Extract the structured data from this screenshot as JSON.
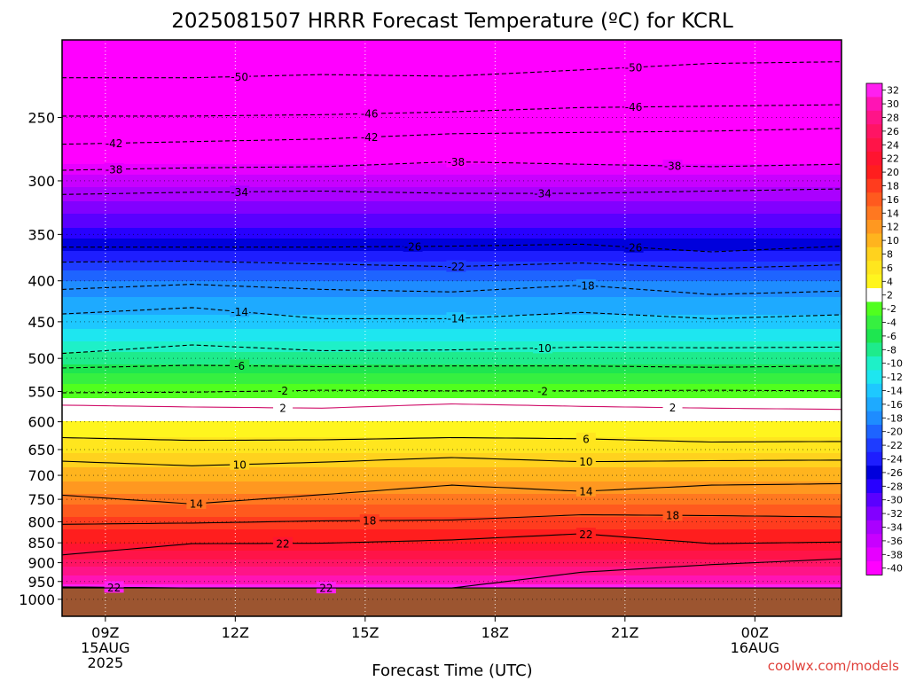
{
  "chart_data": {
    "type": "heatmap",
    "title": "2025081507 HRRR Forecast Temperature (ºC) for KCRL",
    "xlabel": "Forecast Time (UTC)",
    "ylabel": "",
    "x_ticks": [
      {
        "label": [
          "09Z",
          "15AUG",
          "2025"
        ],
        "hour": 9
      },
      {
        "label": [
          "12Z"
        ],
        "hour": 12
      },
      {
        "label": [
          "15Z"
        ],
        "hour": 15
      },
      {
        "label": [
          "18Z"
        ],
        "hour": 18
      },
      {
        "label": [
          "21Z"
        ],
        "hour": 21
      },
      {
        "label": [
          "00Z",
          "16AUG"
        ],
        "hour": 24
      }
    ],
    "xlim_hours": [
      8,
      26
    ],
    "y_axis": "pressure (hPa), log scale, inverted",
    "y_ticks": [
      250,
      300,
      350,
      400,
      450,
      500,
      550,
      600,
      650,
      700,
      750,
      800,
      850,
      900,
      950,
      1000
    ],
    "ylim": [
      200,
      1050
    ],
    "surface_pressure": 968,
    "colorbar": {
      "labels": [
        "32",
        "30",
        "28",
        "26",
        "24",
        "22",
        "20",
        "18",
        "16",
        "14",
        "12",
        "10",
        "8",
        "6",
        "4",
        "2",
        "-2",
        "-4",
        "-6",
        "-8",
        "-10",
        "-12",
        "-14",
        "-16",
        "-18",
        "-20",
        "-22",
        "-24",
        "-26",
        "-28",
        "-30",
        "-32",
        "-34",
        "-36",
        "-38",
        "-40"
      ],
      "colors": [
        "#ff20f0",
        "#ff14b4",
        "#ff1488",
        "#ff1464",
        "#ff1448",
        "#ff1430",
        "#ff1e1e",
        "#ff3c1e",
        "#ff5a1e",
        "#ff7820",
        "#ff9820",
        "#ffb41e",
        "#ffd21e",
        "#ffe61e",
        "#fff51e",
        "#ffffff",
        "#50ff1e",
        "#36f040",
        "#1ee650",
        "#1eeb8c",
        "#1ef0c8",
        "#1ee6f0",
        "#1ec8ff",
        "#1eaaff",
        "#1e8cff",
        "#1e64ff",
        "#1e3cff",
        "#1e1eff",
        "#0000dc",
        "#2800ff",
        "#5a00ff",
        "#8200ff",
        "#aa00ff",
        "#c800ff",
        "#e600ff",
        "#ff00ff"
      ]
    },
    "layers": [
      {
        "p": 200,
        "t": -58
      },
      {
        "p": 250,
        "t": -47
      },
      {
        "p": 300,
        "t": -36
      },
      {
        "p": 355,
        "t": -27
      },
      {
        "p": 400,
        "t": -19
      },
      {
        "p": 450,
        "t": -14
      },
      {
        "p": 500,
        "t": -8
      },
      {
        "p": 560,
        "t": 0
      },
      {
        "p": 600,
        "t": 3
      },
      {
        "p": 700,
        "t": 10
      },
      {
        "p": 750,
        "t": 14
      },
      {
        "p": 800,
        "t": 18
      },
      {
        "p": 850,
        "t": 21
      },
      {
        "p": 900,
        "t": 26
      },
      {
        "p": 968,
        "t": 32
      }
    ],
    "contours": [
      {
        "level": -50,
        "dashed": true,
        "p": [
          223,
          223,
          221,
          222,
          218,
          214,
          213
        ],
        "labels": [
          {
            "hour": 12.1,
            "text": "-50"
          },
          {
            "hour": 21.2,
            "text": "-50"
          }
        ]
      },
      {
        "level": -46,
        "dashed": true,
        "p": [
          249,
          249,
          248,
          246,
          243,
          242,
          241
        ],
        "labels": [
          {
            "hour": 15.1,
            "text": "-46"
          },
          {
            "hour": 21.2,
            "text": "-46"
          }
        ]
      },
      {
        "level": -42,
        "dashed": true,
        "p": [
          270,
          268,
          266,
          262,
          261,
          260,
          258
        ],
        "labels": [
          {
            "hour": 9.2,
            "text": "-42"
          },
          {
            "hour": 15.1,
            "text": "-42"
          }
        ]
      },
      {
        "level": -38,
        "dashed": true,
        "p": [
          291,
          289,
          288,
          284,
          286,
          288,
          286
        ],
        "labels": [
          {
            "hour": 9.2,
            "text": "-38"
          },
          {
            "hour": 17.1,
            "text": "-38"
          },
          {
            "hour": 22.1,
            "text": "-38"
          }
        ]
      },
      {
        "level": -34,
        "dashed": true,
        "p": [
          312,
          310,
          309,
          311,
          311,
          309,
          307
        ],
        "labels": [
          {
            "hour": 12.1,
            "text": "-34"
          },
          {
            "hour": 19.1,
            "text": "-34"
          }
        ]
      },
      {
        "level": -26,
        "dashed": true,
        "p": [
          363,
          363,
          363,
          362,
          360,
          368,
          362
        ],
        "labels": [
          {
            "hour": 16.1,
            "text": "-26"
          },
          {
            "hour": 21.2,
            "text": "-26"
          }
        ]
      },
      {
        "level": -22,
        "dashed": true,
        "p": [
          379,
          378,
          381,
          384,
          380,
          386,
          382
        ],
        "labels": [
          {
            "hour": 17.1,
            "text": "-22"
          }
        ]
      },
      {
        "level": -18,
        "dashed": true,
        "p": [
          410,
          404,
          410,
          413,
          405,
          416,
          412
        ],
        "labels": [
          {
            "hour": 20.1,
            "text": "-18"
          }
        ]
      },
      {
        "level": -14,
        "dashed": true,
        "p": [
          440,
          432,
          446,
          446,
          438,
          446,
          441
        ],
        "labels": [
          {
            "hour": 12.1,
            "text": "-14"
          },
          {
            "hour": 17.1,
            "text": "-14"
          }
        ]
      },
      {
        "level": -10,
        "dashed": true,
        "p": [
          493,
          481,
          489,
          488,
          484,
          485,
          484
        ],
        "labels": [
          {
            "hour": 19.1,
            "text": "-10"
          }
        ]
      },
      {
        "level": -6,
        "dashed": true,
        "p": [
          514,
          510,
          512,
          511,
          511,
          513,
          511
        ],
        "labels": [
          {
            "hour": 12.1,
            "text": "-6"
          }
        ]
      },
      {
        "level": -2,
        "dashed": true,
        "p": [
          552,
          551,
          548,
          549,
          549,
          548,
          549
        ],
        "labels": [
          {
            "hour": 13.1,
            "text": "-2"
          },
          {
            "hour": 19.1,
            "text": "-2"
          }
        ]
      },
      {
        "level": 2,
        "dashed": false,
        "p": [
          572,
          575,
          577,
          570,
          574,
          577,
          579
        ],
        "labels": [
          {
            "hour": 13.1,
            "text": "2"
          },
          {
            "hour": 22.1,
            "text": "2"
          }
        ]
      },
      {
        "level": 6,
        "dashed": false,
        "p": [
          628,
          633,
          632,
          628,
          630,
          636,
          635
        ],
        "labels": [
          {
            "hour": 20.1,
            "text": "6"
          }
        ]
      },
      {
        "level": 10,
        "dashed": false,
        "p": [
          672,
          681,
          674,
          665,
          673,
          671,
          670
        ],
        "labels": [
          {
            "hour": 12.1,
            "text": "10"
          },
          {
            "hour": 20.1,
            "text": "10"
          }
        ]
      },
      {
        "level": 14,
        "dashed": false,
        "p": [
          741,
          760,
          740,
          720,
          733,
          720,
          717
        ],
        "labels": [
          {
            "hour": 11.1,
            "text": "14"
          },
          {
            "hour": 20.1,
            "text": "14"
          }
        ]
      },
      {
        "level": 18,
        "dashed": false,
        "p": [
          806,
          803,
          798,
          796,
          784,
          786,
          789
        ],
        "labels": [
          {
            "hour": 15.1,
            "text": "18"
          },
          {
            "hour": 22.1,
            "text": "18"
          }
        ]
      },
      {
        "level": 22,
        "dashed": false,
        "p": [
          880,
          852,
          851,
          843,
          828,
          852,
          848
        ],
        "labels": [
          {
            "hour": 13.1,
            "text": "22"
          },
          {
            "hour": 20.1,
            "text": "22"
          }
        ]
      },
      {
        "level": 22,
        "dashed": false,
        "p": [
          965,
          968,
          968,
          968,
          968,
          968,
          968
        ],
        "labels": [
          {
            "hour": 9.2,
            "text": "22"
          },
          {
            "hour": 14.1,
            "text": "22"
          }
        ]
      },
      {
        "level": 26,
        "dashed": false,
        "p": [
          968,
          968,
          968,
          968,
          925,
          905,
          890
        ],
        "labels": []
      }
    ],
    "contour_hours": [
      8,
      11,
      14,
      17,
      20,
      23,
      26
    ]
  },
  "credit": "coolwx.com/models"
}
